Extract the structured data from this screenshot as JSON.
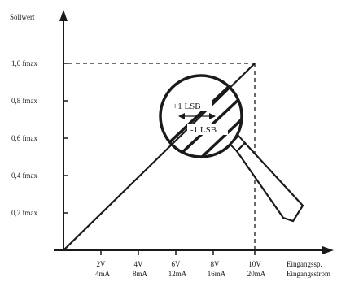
{
  "y_axis_label": "Sollwert",
  "y_ticks": [
    "1,0 fmax",
    "0,8 fmax",
    "0,6 fmax",
    "0,4 fmax",
    "0,2 fmax"
  ],
  "x_ticks": [
    {
      "voltage": "2V",
      "current": "4mA"
    },
    {
      "voltage": "4V",
      "current": "8mA"
    },
    {
      "voltage": "6V",
      "current": "12mA"
    },
    {
      "voltage": "8V",
      "current": "16mA"
    },
    {
      "voltage": "10V",
      "current": "20mA"
    }
  ],
  "x_axis_label_1": "Eingangssp.",
  "x_axis_label_2": "Eingangsstrom",
  "lens_label_plus": "+1 LSB",
  "lens_label_minus": "-1 LSB",
  "colors": {
    "ink": "#1a1a1a",
    "background": "#ffffff"
  }
}
